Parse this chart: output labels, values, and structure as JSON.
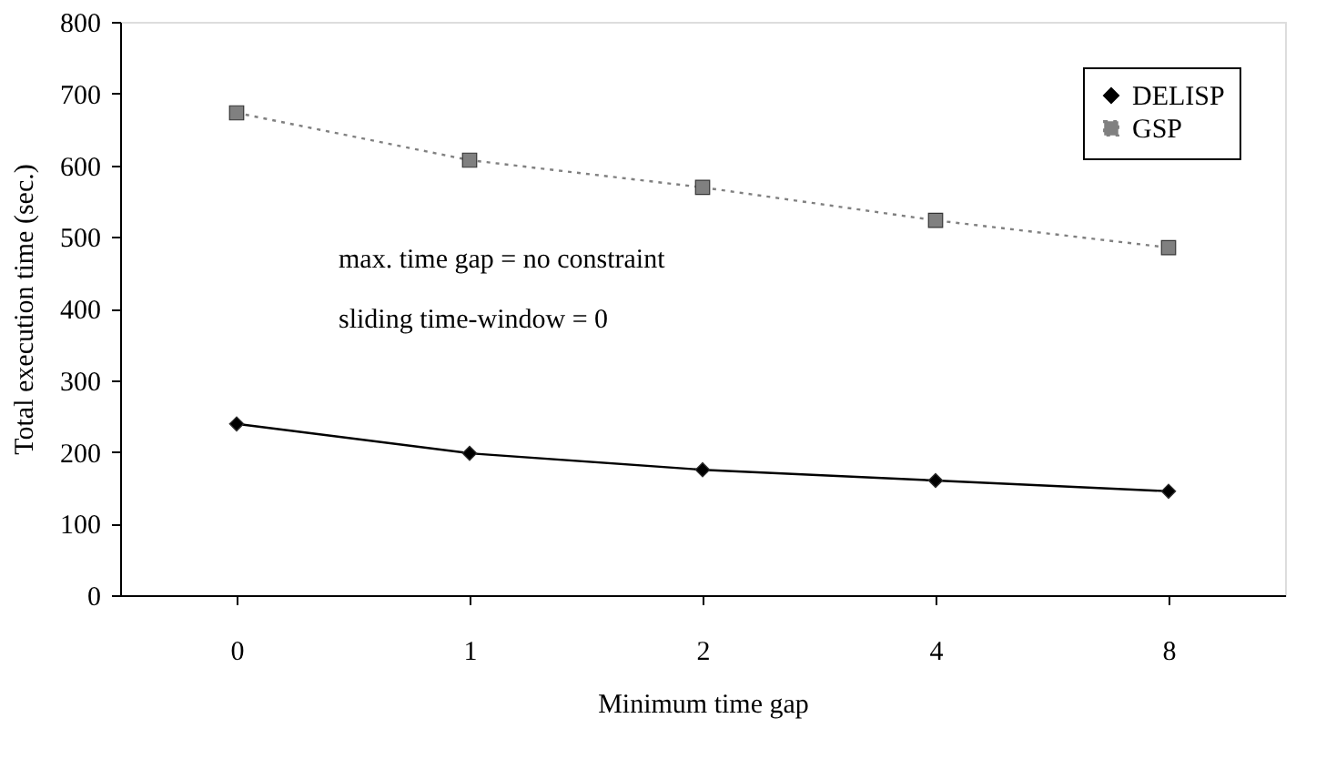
{
  "chart_data": {
    "type": "line",
    "xlabel": "Minimum time gap",
    "ylabel": "Total execution time (sec.)",
    "categories": [
      "0",
      "1",
      "2",
      "4",
      "8"
    ],
    "ylim": [
      0,
      800
    ],
    "yticks": [
      0,
      100,
      200,
      300,
      400,
      500,
      600,
      700,
      800
    ],
    "grid": false,
    "legend": "top right",
    "annotations": [
      "max. time gap = no constraint",
      "sliding time-window = 0"
    ],
    "series": [
      {
        "name": "DELISP",
        "color": "#000000",
        "marker": "diamond",
        "line_style": "solid",
        "values": [
          239,
          198,
          175,
          160,
          145
        ]
      },
      {
        "name": "GSP",
        "color": "#808080",
        "marker": "square",
        "line_style": "dotted",
        "values": [
          673,
          607,
          569,
          523,
          485
        ]
      }
    ]
  }
}
